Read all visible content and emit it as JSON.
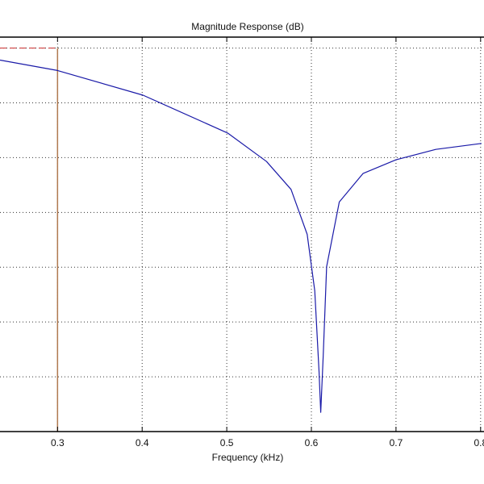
{
  "chart_data": {
    "type": "line",
    "title": "Magnitude Response (dB)",
    "xlabel": "Frequency (kHz)",
    "ylabel": "",
    "xlim": [
      0.232,
      0.804
    ],
    "ylim": [
      -70,
      2
    ],
    "xticks": [
      0.3,
      0.4,
      0.5,
      0.6,
      0.7,
      0.8
    ],
    "xtick_labels": [
      "0.3",
      "0.4",
      "0.5",
      "0.6",
      "0.7",
      "0.8"
    ],
    "yticks": [
      0,
      -10,
      -20,
      -30,
      -40,
      -50,
      -60
    ],
    "grid": true,
    "series": [
      {
        "color": "#1a1aa8",
        "x": [
          0.232,
          0.3,
          0.401,
          0.501,
          0.547,
          0.576,
          0.595,
          0.604,
          0.609,
          0.611,
          0.614,
          0.618,
          0.633,
          0.661,
          0.7,
          0.747,
          0.801
        ],
        "y": [
          -2.2,
          -4.1,
          -8.6,
          -15.5,
          -20.7,
          -25.8,
          -34,
          -44.3,
          -59,
          -66.5,
          -56.1,
          -39.9,
          -28.1,
          -22.9,
          -20.4,
          -18.5,
          -17.4
        ]
      }
    ],
    "annotations": {
      "passband_edge_frequency": 0.3,
      "passband_level_db": 0,
      "mask_horizontal_color": "#d04040",
      "mask_vertical_color": "#b07a50"
    }
  }
}
